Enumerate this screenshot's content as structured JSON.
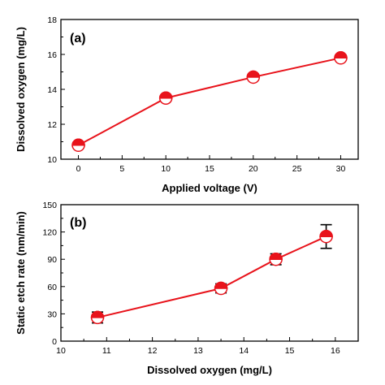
{
  "chart_data": [
    {
      "type": "line",
      "panel_label": "(a)",
      "xlabel": "Applied voltage (V)",
      "ylabel": "Dissolved oxygen (mg/L)",
      "xlim": [
        -2,
        32
      ],
      "ylim": [
        10,
        18
      ],
      "xticks": [
        0,
        5,
        10,
        15,
        20,
        25,
        30
      ],
      "yticks": [
        10,
        12,
        14,
        16,
        18
      ],
      "x": [
        0,
        10,
        20,
        30
      ],
      "series": [
        {
          "values": [
            10.8,
            13.5,
            14.7,
            15.8
          ]
        }
      ],
      "marker": "half-filled circle",
      "line_color": "#e8131b",
      "marker_fill": "#e8131b",
      "grid": false
    },
    {
      "type": "line",
      "panel_label": "(b)",
      "xlabel": "Dissolved oxygen (mg/L)",
      "ylabel": "Static etch rate (nm/min)",
      "xlim": [
        10,
        16.5
      ],
      "ylim": [
        0,
        150
      ],
      "xticks": [
        10,
        11,
        12,
        13,
        14,
        15,
        16
      ],
      "yticks": [
        0,
        30,
        60,
        90,
        120,
        150
      ],
      "x": [
        10.8,
        13.5,
        14.7,
        15.8
      ],
      "series": [
        {
          "values": [
            26,
            58,
            90,
            115
          ],
          "error": [
            6,
            5,
            6,
            13
          ]
        }
      ],
      "marker": "half-filled circle",
      "line_color": "#e8131b",
      "marker_fill": "#e8131b",
      "grid": false
    }
  ]
}
